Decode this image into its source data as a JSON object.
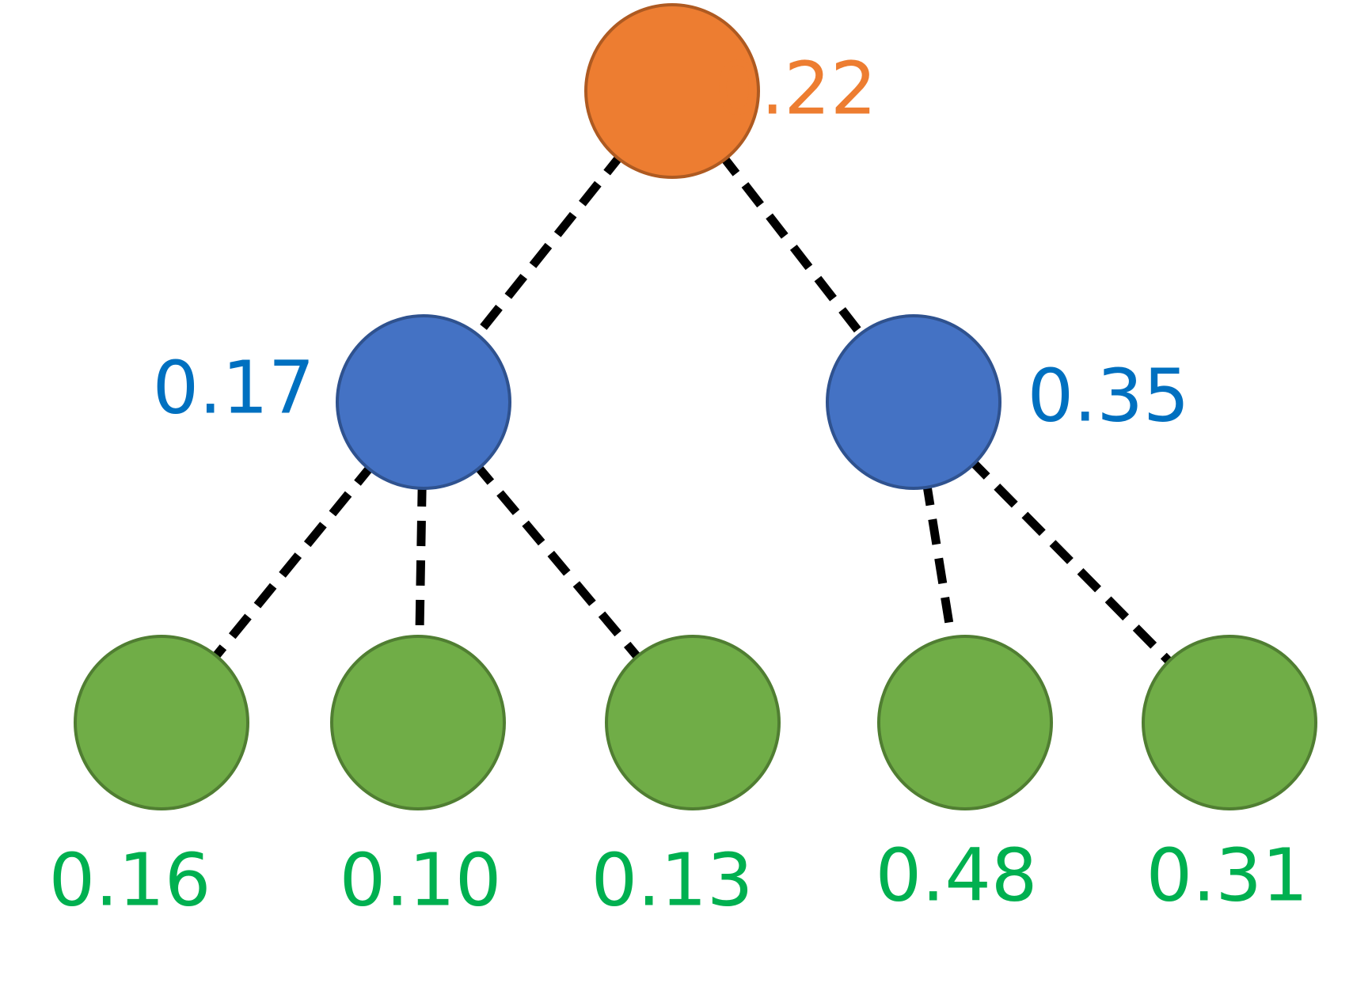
{
  "nodes": [
    {
      "label": "0.22"
    },
    {
      "label": "0.17"
    },
    {
      "label": "0.35"
    },
    {
      "label": "0.16"
    },
    {
      "label": "0.10"
    },
    {
      "label": "0.13"
    },
    {
      "label": "0.48"
    },
    {
      "label": "0.31"
    }
  ]
}
